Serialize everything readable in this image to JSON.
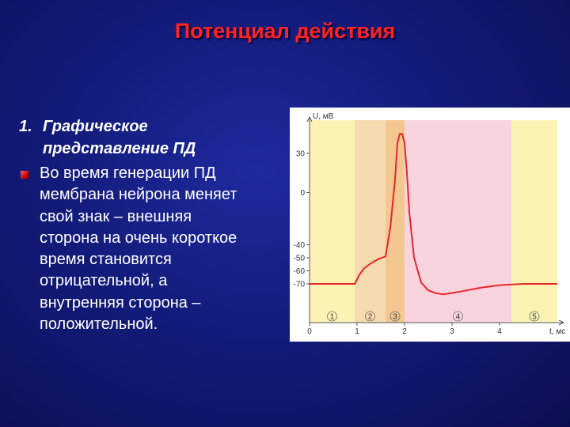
{
  "title": "Потенциал действия",
  "section": {
    "number": "1.",
    "heading_line1": "Графическое",
    "heading_line2": "представление ПД",
    "bullet_lines": [
      "Во время генерации ПД",
      "мембрана нейрона меняет",
      "свой знак – внешняя",
      "сторона на очень короткое",
      "время становится",
      "отрицательной, а",
      "внутренняя сторона –",
      "положительной."
    ]
  },
  "colors": {
    "title": "#ff2222",
    "curve": "#e8262a",
    "phase_yellow": "#fbf3b4",
    "phase_orange": "#f7dbb0",
    "phase_dark_orange": "#f2c790",
    "phase_pink": "#f9d4df"
  },
  "chart_data": {
    "type": "line",
    "ylabel": "U, мВ",
    "xlabel": "t, мс",
    "y_ticks": [
      30,
      0,
      -40,
      -50,
      -60,
      -70
    ],
    "y_tick_labels": [
      "30",
      "0",
      "-40",
      "-50",
      "-60",
      "-70"
    ],
    "x_ticks": [
      0,
      1,
      2,
      3,
      4
    ],
    "x_tick_labels": [
      "0",
      "1",
      "2",
      "3",
      "4"
    ],
    "phase_bounds": [
      0,
      0.95,
      1.6,
      2.0,
      4.25,
      5.3
    ],
    "phase_labels": [
      "1",
      "2",
      "3",
      "4",
      "5"
    ],
    "phase_colors": [
      "phase_yellow",
      "phase_orange",
      "phase_dark_orange",
      "phase_pink",
      "phase_yellow"
    ],
    "series": [
      {
        "x": [
          0,
          0.95,
          1.05,
          1.15,
          1.3,
          1.45,
          1.6,
          1.7,
          1.8,
          1.85,
          1.9,
          1.95,
          2.0,
          2.05,
          2.1,
          2.2,
          2.35,
          2.5,
          2.65,
          2.8,
          3.0,
          3.3,
          3.6,
          4.0,
          4.5,
          5.0,
          5.3
        ],
        "y": [
          -70,
          -70,
          -63,
          -58,
          -54,
          -51,
          -49,
          -27,
          10,
          38,
          45,
          45,
          38,
          15,
          -15,
          -50,
          -69,
          -75,
          -77,
          -78,
          -77,
          -75,
          -73,
          -71,
          -70,
          -70,
          -70
        ]
      }
    ],
    "xlim": [
      0,
      5.3
    ],
    "ylim": [
      -85,
      52
    ]
  }
}
